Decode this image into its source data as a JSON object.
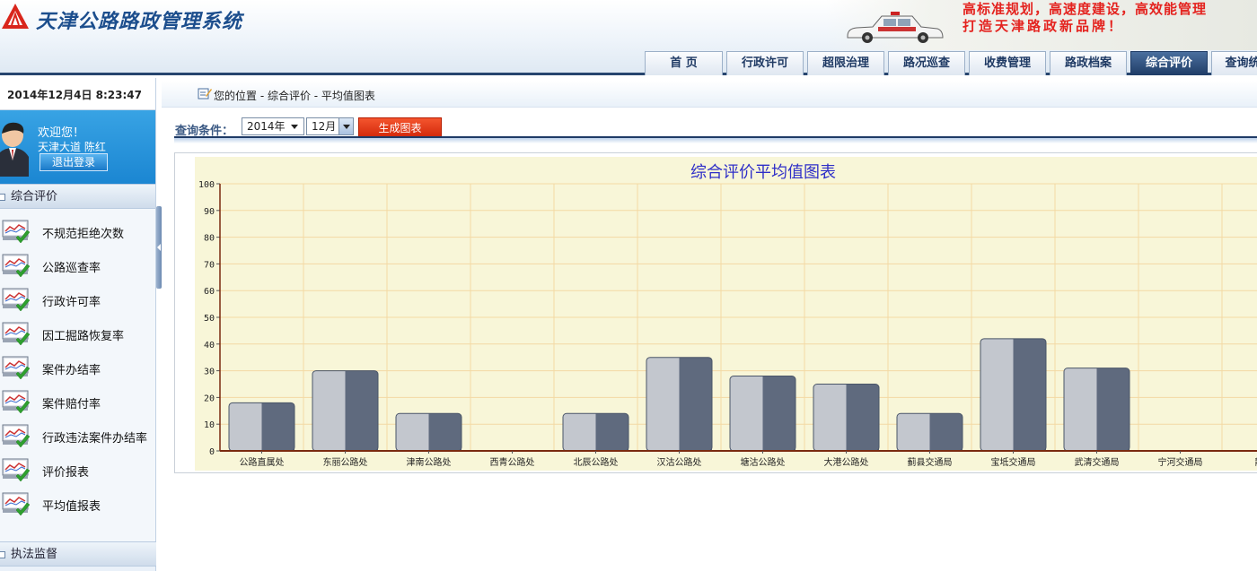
{
  "app": {
    "title": "天津公路路政管理系统",
    "slogan_line1": "高标准规划，高速度建设，高效能管理",
    "slogan_line2": "打造天津路政新品牌！",
    "car_text": "中国 公路"
  },
  "nav": {
    "tabs": [
      {
        "label": "首 页",
        "active": false
      },
      {
        "label": "行政许可",
        "active": false
      },
      {
        "label": "超限治理",
        "active": false
      },
      {
        "label": "路况巡查",
        "active": false
      },
      {
        "label": "收费管理",
        "active": false
      },
      {
        "label": "路政档案",
        "active": false
      },
      {
        "label": "综合评价",
        "active": true
      },
      {
        "label": "查询统",
        "active": false
      }
    ]
  },
  "sidebar": {
    "datetime": "2014年12月4日 8:23:47",
    "welcome": "欢迎您！",
    "user": "天津大道 陈红",
    "logout": "退出登录",
    "section1": "综合评价",
    "items": [
      {
        "label": "不规范拒绝次数",
        "icon": "report-check-icon"
      },
      {
        "label": "公路巡查率",
        "icon": "report-check-icon"
      },
      {
        "label": "行政许可率",
        "icon": "report-check-icon"
      },
      {
        "label": "因工掘路恢复率",
        "icon": "report-check-icon"
      },
      {
        "label": "案件办结率",
        "icon": "report-check-icon"
      },
      {
        "label": "案件赔付率",
        "icon": "report-check-icon"
      },
      {
        "label": "行政违法案件办结率",
        "icon": "report-check-icon"
      },
      {
        "label": "评价报表",
        "icon": "report-check-icon"
      },
      {
        "label": "平均值报表",
        "icon": "report-check-icon"
      }
    ],
    "section2": "执法监督"
  },
  "breadcrumb": "您的位置 - 综合评价 - 平均值图表",
  "query": {
    "label": "查询条件：",
    "year": "2014年",
    "month": "12月",
    "generate": "生成图表"
  },
  "colors": {
    "bar_light": "#c3c7ce",
    "bar_dark": "#5f6a7e",
    "plot_bg": "#f8f6d8",
    "grid": "#f3d9a4",
    "title": "#2f2fc8"
  },
  "chart_data": {
    "type": "bar",
    "title": "综合评价平均值图表",
    "categories": [
      "公路直属处",
      "东丽公路处",
      "津南公路处",
      "西青公路处",
      "北辰公路处",
      "汉沽公路处",
      "塘沽公路处",
      "大港公路处",
      "蓟县交通局",
      "宝坻交通局",
      "武清交通局",
      "宁河交通局",
      "静海"
    ],
    "values": [
      18,
      30,
      14,
      0,
      14,
      35,
      28,
      25,
      14,
      42,
      31,
      0,
      0
    ],
    "ylim": [
      0,
      100
    ],
    "yticks": [
      0,
      10,
      20,
      30,
      40,
      50,
      60,
      70,
      80,
      90,
      100
    ],
    "grid": true
  }
}
